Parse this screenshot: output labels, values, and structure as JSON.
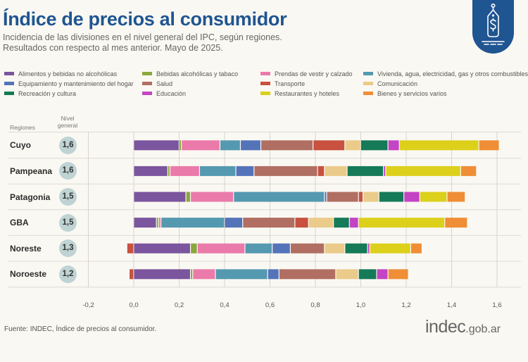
{
  "header": {
    "title": "Índice de precios al consumidor",
    "subtitle_line1": "Incidencia de las divisiones en el nivel general del IPC, según regiones.",
    "subtitle_line2": "Resultados con respecto al mes anterior. Mayo de 2025.",
    "badge_icon": "price-tag-dollar-icon"
  },
  "table_headers": {
    "regions": "Regiones",
    "nivel_line1": "Nivel",
    "nivel_line2": "general"
  },
  "footer": {
    "source": "Fuente: INDEC, Índice de precios al consumidor.",
    "logo_main": "indec",
    "logo_suffix": ".gob.ar"
  },
  "chart_data": {
    "type": "bar",
    "orientation": "horizontal",
    "stacked": true,
    "title": "Índice de precios al consumidor",
    "subtitle": "Incidencia de las divisiones en el nivel general del IPC, según regiones. Resultados con respecto al mes anterior. Mayo de 2025.",
    "xlabel": "",
    "ylabel": "Regiones",
    "xlim": [
      -0.2,
      1.7
    ],
    "xticks": [
      -0.2,
      0.0,
      0.2,
      0.4,
      0.6,
      0.8,
      1.0,
      1.2,
      1.4,
      1.6
    ],
    "xtick_labels": [
      "-0,2",
      "0,0",
      "0,2",
      "0,4",
      "0,6",
      "0,8",
      "1,0",
      "1,2",
      "1,4",
      "1,6"
    ],
    "grid": true,
    "legend_position": "top",
    "categories": [
      "Cuyo",
      "Pampeana",
      "Patagonia",
      "GBA",
      "Noreste",
      "Noroeste"
    ],
    "nivel_general": [
      "1,6",
      "1,6",
      "1,5",
      "1,5",
      "1,3",
      "1,2"
    ],
    "series": [
      {
        "name": "Alimentos y bebidas no alcohólicas",
        "color": "#7b559e",
        "values": [
          0.2,
          0.15,
          0.23,
          0.1,
          0.25,
          0.25
        ]
      },
      {
        "name": "Bebidas alcohólicas y tabaco",
        "color": "#8aa83c",
        "values": [
          0.01,
          0.01,
          0.02,
          0.01,
          0.03,
          0.01
        ]
      },
      {
        "name": "Prendas de vestir y calzado",
        "color": "#ea7aaa",
        "values": [
          0.17,
          0.13,
          0.19,
          0.01,
          0.21,
          0.1
        ]
      },
      {
        "name": "Vivienda, agua, electricidad, gas y otros combustibles",
        "color": "#5499b0",
        "values": [
          0.09,
          0.16,
          0.4,
          0.28,
          0.12,
          0.23
        ]
      },
      {
        "name": "Equipamiento y mantenimiento del hogar",
        "color": "#5474ba",
        "values": [
          0.09,
          0.08,
          0.01,
          0.08,
          0.08,
          0.05
        ]
      },
      {
        "name": "Salud",
        "color": "#b06f62",
        "values": [
          0.23,
          0.28,
          0.14,
          0.23,
          0.15,
          0.25
        ]
      },
      {
        "name": "Transporte",
        "color": "#c8513f",
        "values": [
          0.14,
          0.03,
          0.02,
          0.06,
          -0.03,
          -0.02
        ]
      },
      {
        "name": "Comunicación",
        "color": "#eacb8a",
        "values": [
          0.07,
          0.1,
          0.07,
          0.11,
          0.09,
          0.1
        ]
      },
      {
        "name": "Recreación y cultura",
        "color": "#157a58",
        "values": [
          0.12,
          0.16,
          0.11,
          0.07,
          0.1,
          0.08
        ]
      },
      {
        "name": "Educación",
        "color": "#c344c4",
        "values": [
          0.05,
          0.01,
          0.07,
          0.04,
          0.01,
          0.05
        ]
      },
      {
        "name": "Restaurantes y hoteles",
        "color": "#dcd01b",
        "values": [
          0.35,
          0.33,
          0.12,
          0.38,
          0.18,
          0.0
        ]
      },
      {
        "name": "Bienes y servicios varios",
        "color": "#ef8e36",
        "values": [
          0.09,
          0.07,
          0.08,
          0.1,
          0.05,
          0.09
        ]
      }
    ]
  }
}
